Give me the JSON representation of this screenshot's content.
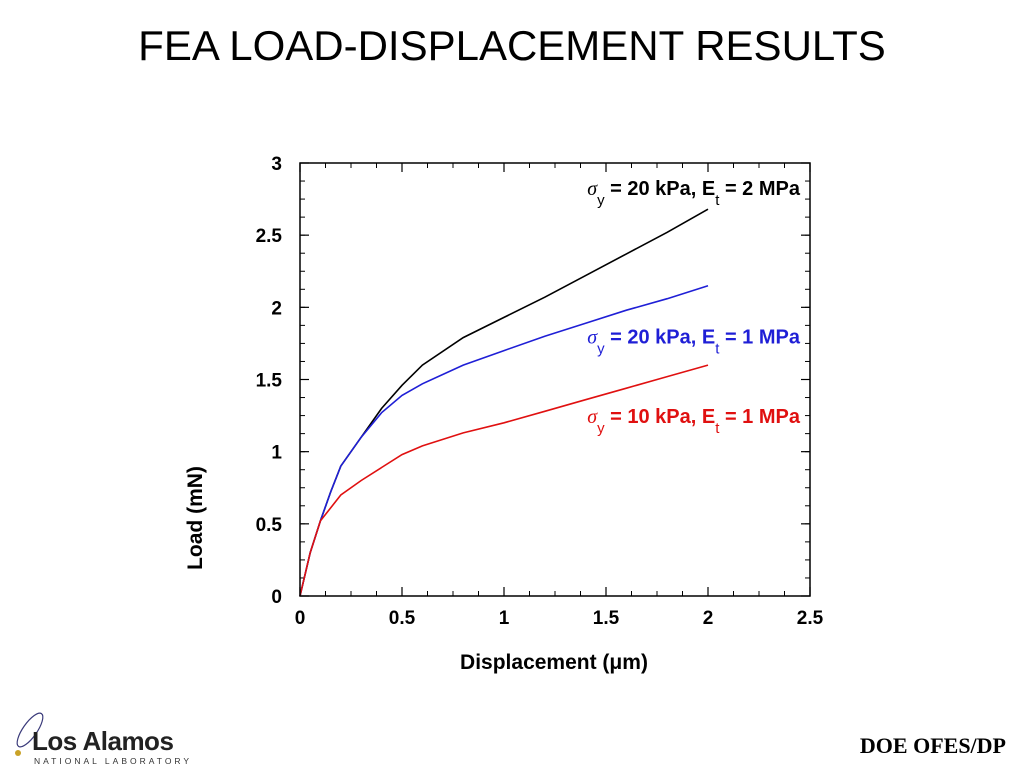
{
  "slide": {
    "title": "FEA LOAD-DISPLACEMENT RESULTS",
    "footer": "DOE OFES/DP",
    "logo": {
      "name": "Los Alamos",
      "subtitle": "NATIONAL LABORATORY"
    }
  },
  "chart_data": {
    "type": "line",
    "title": "",
    "xlabel": "Displacement (μm)",
    "ylabel": "Load (mN)",
    "xlim": [
      0,
      2.5
    ],
    "ylim": [
      0,
      3
    ],
    "xticks": [
      "0",
      "0.5",
      "1",
      "1.5",
      "2",
      "2.5"
    ],
    "yticks": [
      "0",
      "0.5",
      "1",
      "1.5",
      "2",
      "2.5",
      "3"
    ],
    "grid": false,
    "series": [
      {
        "color": "#000000",
        "label": {
          "sigma": "σ",
          "sub1": "y",
          "mid": " = 20 kPa, E",
          "sub2": "t",
          "end": " = 2 MPa"
        },
        "points": [
          [
            0,
            0
          ],
          [
            0.05,
            0.3
          ],
          [
            0.1,
            0.52
          ],
          [
            0.15,
            0.72
          ],
          [
            0.2,
            0.9
          ],
          [
            0.3,
            1.1
          ],
          [
            0.4,
            1.3
          ],
          [
            0.5,
            1.46
          ],
          [
            0.6,
            1.6
          ],
          [
            0.8,
            1.79
          ],
          [
            1.0,
            1.93
          ],
          [
            1.2,
            2.07
          ],
          [
            1.4,
            2.22
          ],
          [
            1.6,
            2.37
          ],
          [
            1.8,
            2.52
          ],
          [
            2.0,
            2.68
          ]
        ]
      },
      {
        "color": "#1f1fd6",
        "label": {
          "sigma": "σ",
          "sub1": "y",
          "mid": " = 20 kPa, E",
          "sub2": "t",
          "end": " = 1 MPa"
        },
        "points": [
          [
            0,
            0
          ],
          [
            0.05,
            0.3
          ],
          [
            0.1,
            0.52
          ],
          [
            0.15,
            0.72
          ],
          [
            0.2,
            0.9
          ],
          [
            0.3,
            1.1
          ],
          [
            0.4,
            1.27
          ],
          [
            0.5,
            1.39
          ],
          [
            0.6,
            1.47
          ],
          [
            0.8,
            1.6
          ],
          [
            1.0,
            1.7
          ],
          [
            1.2,
            1.8
          ],
          [
            1.4,
            1.89
          ],
          [
            1.6,
            1.98
          ],
          [
            1.8,
            2.06
          ],
          [
            2.0,
            2.15
          ]
        ]
      },
      {
        "color": "#e01010",
        "label": {
          "sigma": "σ",
          "sub1": "y",
          "mid": " = 10 kPa, E",
          "sub2": "t",
          "end": " = 1 MPa"
        },
        "points": [
          [
            0,
            0
          ],
          [
            0.05,
            0.3
          ],
          [
            0.1,
            0.52
          ],
          [
            0.2,
            0.7
          ],
          [
            0.3,
            0.8
          ],
          [
            0.4,
            0.89
          ],
          [
            0.5,
            0.98
          ],
          [
            0.6,
            1.04
          ],
          [
            0.8,
            1.13
          ],
          [
            1.0,
            1.2
          ],
          [
            1.2,
            1.28
          ],
          [
            1.4,
            1.36
          ],
          [
            1.6,
            1.44
          ],
          [
            1.8,
            1.52
          ],
          [
            2.0,
            1.6
          ]
        ]
      }
    ]
  }
}
